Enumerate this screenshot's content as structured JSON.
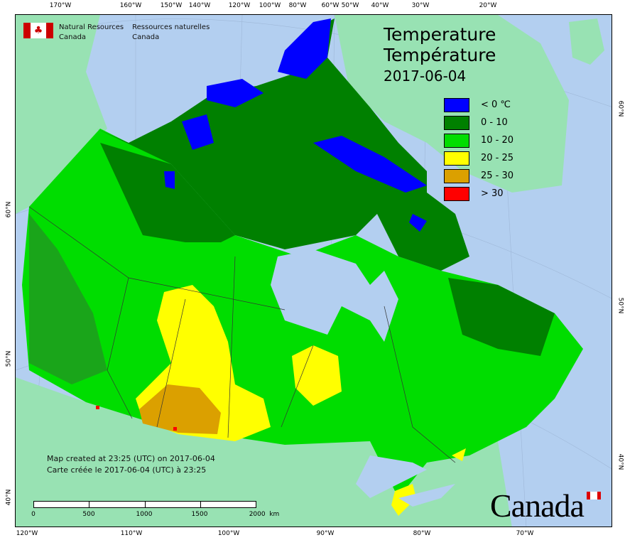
{
  "header": {
    "org_en": "Natural Resources",
    "org_en_2": "Canada",
    "org_fr": "Ressources naturelles",
    "org_fr_2": "Canada"
  },
  "title": {
    "en": "Temperature",
    "fr": "Température",
    "date": "2017-06-04"
  },
  "legend": [
    {
      "label": "< 0 ℃",
      "color": "#0000ff"
    },
    {
      "label": "0 - 10",
      "color": "#008000"
    },
    {
      "label": "10 - 20",
      "color": "#00dd00"
    },
    {
      "label": "20 - 25",
      "color": "#ffff00"
    },
    {
      "label": "25 - 30",
      "color": "#dba000"
    },
    {
      "label": "> 30",
      "color": "#ff0000"
    }
  ],
  "credit": {
    "line_en": "Map created at 23:25 (UTC) on 2017-06-04",
    "line_fr": "Carte créée le 2017-06-04 (UTC) à 23:25"
  },
  "scale_bar": {
    "labels": [
      "0",
      "500",
      "1000",
      "1500",
      "2000  km"
    ]
  },
  "top_ticks": [
    "170°W",
    "160°W",
    "150°W",
    "140°W",
    "120°W",
    "100°W",
    "80°W",
    "60°W",
    "50°W",
    "40°W",
    "30°W",
    "20°W"
  ],
  "bottom_ticks": [
    "120°W",
    "110°W",
    "100°W",
    "90°W",
    "80°W",
    "70°W"
  ],
  "left_ticks": [
    "60°N",
    "50°N",
    "40°N"
  ],
  "right_ticks": [
    "60°N",
    "50°N",
    "40°N"
  ],
  "wordmark": "Canada",
  "colors": {
    "ocean": "#b3cff0",
    "foreign_land": "#98e2b3"
  }
}
